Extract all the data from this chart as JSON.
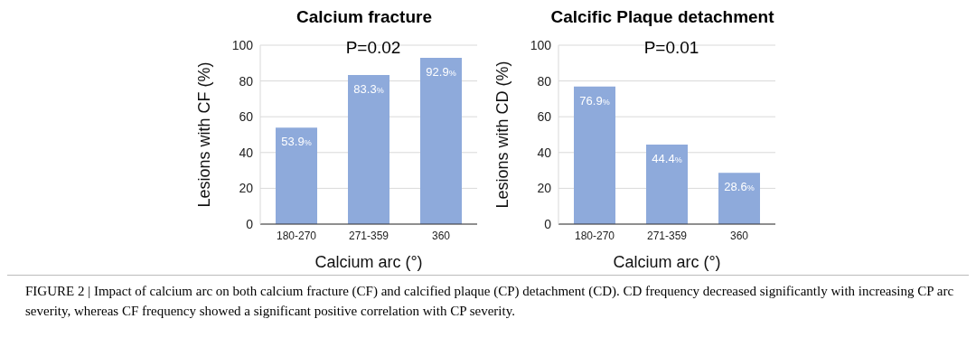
{
  "chart_data": [
    {
      "type": "bar",
      "title": "Calcium fracture",
      "xlabel": "Calcium arc (°)",
      "ylabel": "Lesions with CF (%)",
      "categories": [
        "180-270",
        "271-359",
        "360"
      ],
      "values": [
        53.9,
        83.3,
        92.9
      ],
      "value_labels": [
        "53.9%",
        "83.3%",
        "92.9%"
      ],
      "color": "#8eaadb",
      "ylim": [
        0,
        100
      ],
      "yticks": [
        0,
        20,
        40,
        60,
        80,
        100
      ],
      "grid": "y",
      "legend": false,
      "annotations": [
        "P=0.02",
        "FIGURE 2 | Impact of calcium arc on both calcium fracture (CF) and calcified plaque (CP) detachment (CD). CD frequency decreased significantly with increasing CP arc severity, whereas CF frequency showed a significant positive correlation with CP severity."
      ]
    },
    {
      "type": "bar",
      "title": "Calcific Plaque detachment",
      "xlabel": "Calcium arc (°)",
      "ylabel": "Lesions with CD (%)",
      "categories": [
        "180-270",
        "271-359",
        "360"
      ],
      "values": [
        76.9,
        44.4,
        28.6
      ],
      "value_labels": [
        "76.9%",
        "44.4%",
        "28.6%"
      ],
      "color": "#8eaadb",
      "ylim": [
        0,
        100
      ],
      "yticks": [
        0,
        20,
        40,
        60,
        80,
        100
      ],
      "grid": "y",
      "legend": false,
      "annotations": [
        "P=0.01"
      ]
    }
  ]
}
